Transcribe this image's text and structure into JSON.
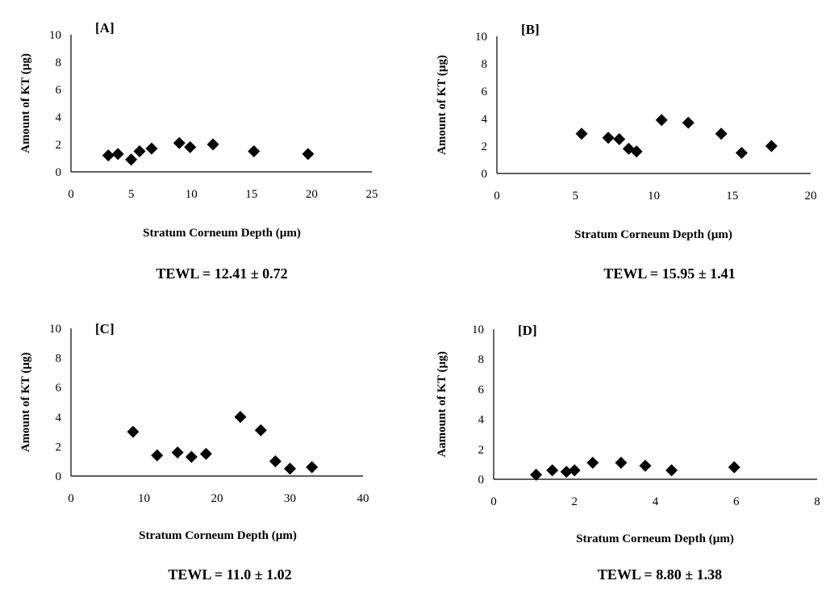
{
  "chart_data": [
    {
      "type": "scatter",
      "title": "[A]",
      "xlabel": "Stratum Corneum Depth (µm)",
      "ylabel": "Amount of KT (µg)",
      "xlim": [
        0,
        25
      ],
      "ylim": [
        0,
        10
      ],
      "xticks": [
        0,
        5,
        10,
        15,
        20,
        25
      ],
      "yticks": [
        0,
        2,
        4,
        6,
        8,
        10
      ],
      "grid": false,
      "x": [
        3.1,
        3.9,
        5.0,
        5.7,
        6.7,
        9.0,
        9.9,
        11.8,
        15.2,
        19.7
      ],
      "y": [
        1.2,
        1.3,
        0.9,
        1.5,
        1.7,
        2.1,
        1.8,
        2.0,
        1.5,
        1.3
      ],
      "annotation": "TEWL = 12.41 ± 0.72"
    },
    {
      "type": "scatter",
      "title": "[B]",
      "xlabel": "Stratum Corneum Depth (µm)",
      "ylabel": "Amount of KT (µg)",
      "xlim": [
        0,
        20
      ],
      "ylim": [
        0,
        10
      ],
      "xticks": [
        0,
        5,
        10,
        15,
        20
      ],
      "yticks": [
        0,
        2,
        4,
        6,
        8,
        10
      ],
      "grid": false,
      "x": [
        5.4,
        7.1,
        7.8,
        8.4,
        8.9,
        10.5,
        12.2,
        14.3,
        15.6,
        17.5
      ],
      "y": [
        2.9,
        2.6,
        2.5,
        1.8,
        1.6,
        3.9,
        3.7,
        2.9,
        1.5,
        2.0
      ],
      "annotation": "TEWL = 15.95 ± 1.41"
    },
    {
      "type": "scatter",
      "title": "[C]",
      "xlabel": "Stratum Corneum Depth (µm)",
      "ylabel": "Amount of KT (µg)",
      "xlim": [
        0,
        40
      ],
      "ylim": [
        0,
        10
      ],
      "xticks": [
        0,
        10,
        20,
        30,
        40
      ],
      "yticks": [
        0,
        2,
        4,
        6,
        8,
        10
      ],
      "grid": false,
      "x": [
        8.5,
        11.8,
        14.6,
        16.5,
        18.5,
        23.2,
        26.0,
        28.0,
        30.0,
        33.0
      ],
      "y": [
        3.0,
        1.4,
        1.6,
        1.3,
        1.5,
        4.0,
        3.1,
        1.0,
        0.5,
        0.6
      ],
      "annotation": "TEWL = 11.0 ± 1.02"
    },
    {
      "type": "scatter",
      "title": "[D]",
      "xlabel": "Stratum Corneum Depth (µm)",
      "ylabel": "Aamount of KT (µg)",
      "xlim": [
        0,
        8
      ],
      "ylim": [
        0,
        10
      ],
      "xticks": [
        0,
        2,
        4,
        6,
        8
      ],
      "yticks": [
        0,
        2,
        4,
        6,
        8,
        10
      ],
      "grid": false,
      "x": [
        1.05,
        1.45,
        1.8,
        2.0,
        2.45,
        3.15,
        3.75,
        4.4,
        5.95
      ],
      "y": [
        0.3,
        0.6,
        0.5,
        0.6,
        1.1,
        1.1,
        0.9,
        0.6,
        0.8
      ],
      "annotation": "TEWL = 8.80 ± 1.38"
    }
  ]
}
